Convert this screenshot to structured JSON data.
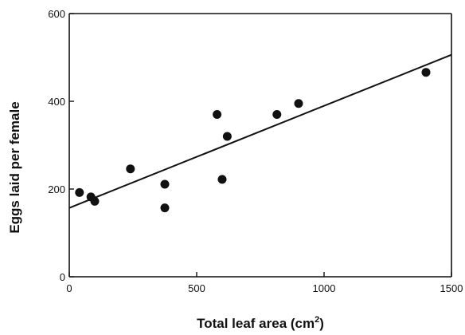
{
  "chart_data": {
    "type": "scatter",
    "xlabel": "Total leaf area (cm",
    "xlabel_superscript": "2",
    "xlabel_suffix": ")",
    "ylabel": "Eggs laid per female",
    "xlim": [
      0,
      1500
    ],
    "ylim": [
      0,
      600
    ],
    "x_ticks": [
      0,
      500,
      1000,
      1500
    ],
    "y_ticks": [
      0,
      200,
      400,
      600
    ],
    "grid": false,
    "legend": "none",
    "colors": {
      "points": "#111111",
      "line": "#111111"
    },
    "points": [
      {
        "x": 40,
        "y": 192
      },
      {
        "x": 85,
        "y": 182
      },
      {
        "x": 100,
        "y": 172
      },
      {
        "x": 240,
        "y": 246
      },
      {
        "x": 375,
        "y": 211
      },
      {
        "x": 375,
        "y": 157
      },
      {
        "x": 580,
        "y": 370
      },
      {
        "x": 600,
        "y": 222
      },
      {
        "x": 620,
        "y": 320
      },
      {
        "x": 815,
        "y": 370
      },
      {
        "x": 900,
        "y": 395
      },
      {
        "x": 1400,
        "y": 466
      }
    ],
    "trendline": {
      "x": [
        0,
        1500
      ],
      "y": [
        157,
        506
      ]
    }
  }
}
